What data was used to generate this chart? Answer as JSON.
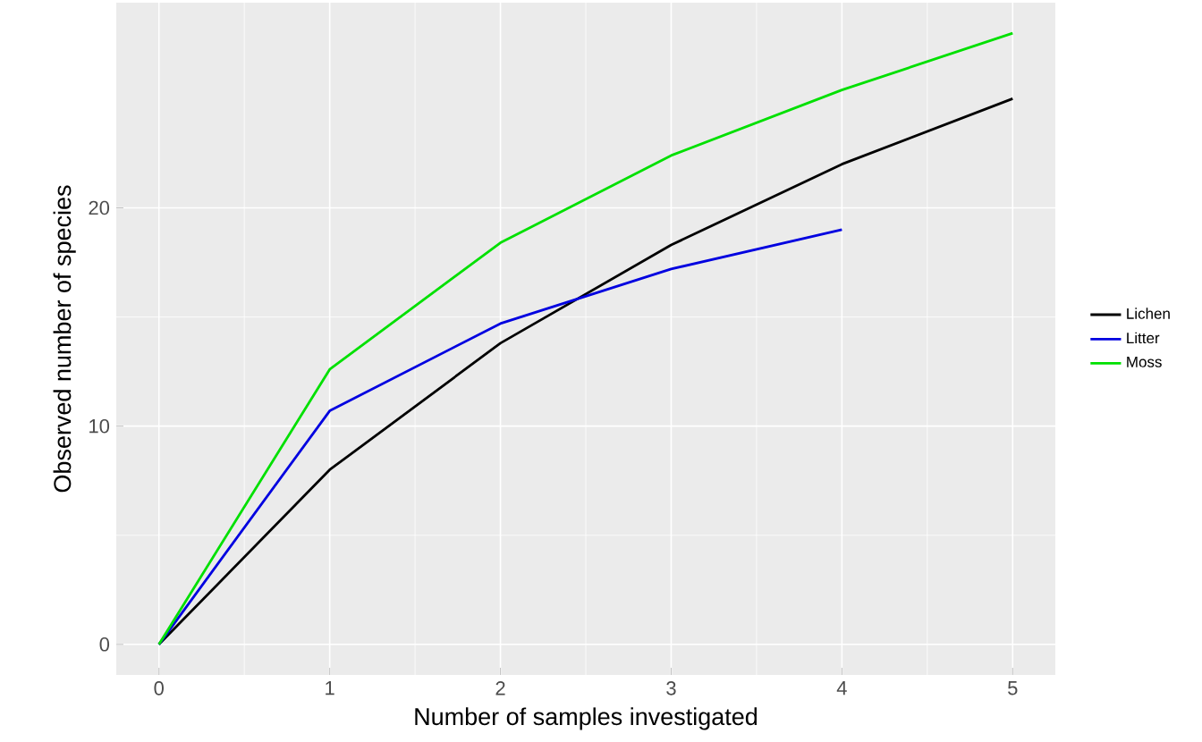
{
  "chart_data": {
    "type": "line",
    "xlabel": "Number of samples investigated",
    "ylabel": "Observed number of species",
    "x": [
      0,
      1,
      2,
      3,
      4,
      5
    ],
    "series": [
      {
        "name": "Lichen",
        "color": "#000000",
        "values": [
          0,
          8,
          13.8,
          18.3,
          22.0,
          25.0
        ]
      },
      {
        "name": "Litter",
        "color": "#0000e0",
        "values": [
          0,
          10.7,
          14.7,
          17.2,
          19.0,
          null
        ]
      },
      {
        "name": "Moss",
        "color": "#00e000",
        "values": [
          0,
          12.6,
          18.4,
          22.4,
          25.4,
          28.0
        ]
      }
    ],
    "xlim": [
      -0.25,
      5.25
    ],
    "ylim": [
      -1.4,
      29.4
    ],
    "xticks": [
      0,
      1,
      2,
      3,
      4,
      5
    ],
    "yticks": [
      0,
      10,
      20
    ],
    "grid": true,
    "legend": "right",
    "line_style": "solid",
    "marker": "none"
  }
}
